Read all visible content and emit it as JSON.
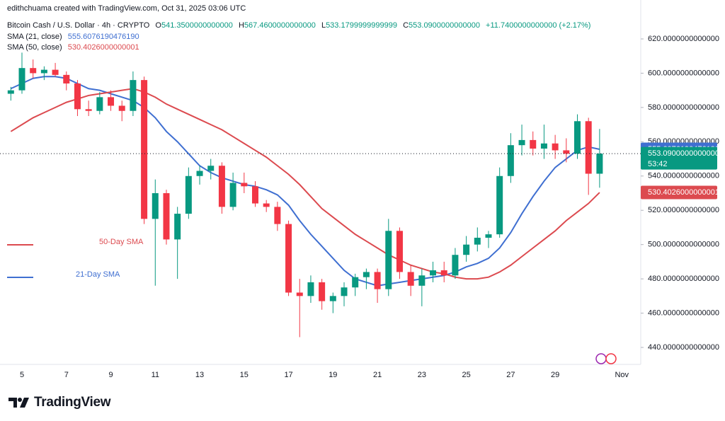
{
  "header": {
    "credit": "edithchuama created with TradingView.com, Oct 31, 2025 03:06 UTC",
    "symbol": "Bitcoin Cash / U.S. Dollar · 4h · CRYPTO",
    "ohlc": [
      {
        "key": "O",
        "value": "541.3500000000000"
      },
      {
        "key": "H",
        "value": "567.4600000000000"
      },
      {
        "key": "L",
        "value": "533.1799999999999"
      },
      {
        "key": "C",
        "value": "553.0900000000000"
      }
    ],
    "change": "+11.7400000000000 (+2.17%)"
  },
  "footer": {
    "brand": "TradingView"
  },
  "chart_data": {
    "type": "candlestick",
    "categories": [
      null,
      "5",
      null,
      null,
      null,
      "7",
      null,
      null,
      null,
      "9",
      null,
      null,
      null,
      "11",
      null,
      null,
      null,
      "13",
      null,
      null,
      null,
      "15",
      null,
      null,
      null,
      "17",
      null,
      null,
      null,
      "19",
      null,
      null,
      null,
      "21",
      null,
      null,
      null,
      "23",
      null,
      null,
      null,
      "25",
      null,
      null,
      null,
      "27",
      null,
      null,
      null,
      "29",
      null,
      null,
      null,
      null,
      null,
      "Nov"
    ],
    "open": [
      588,
      590,
      603,
      600,
      602,
      599,
      594,
      579,
      578,
      586,
      581,
      578,
      596,
      515,
      530,
      503,
      518,
      540,
      543,
      546,
      522,
      536,
      534,
      524,
      522,
      512,
      472,
      470,
      478,
      467,
      470,
      475,
      481,
      484,
      474,
      508,
      484,
      476,
      482,
      485,
      482,
      494,
      500,
      504,
      506,
      540,
      558,
      561,
      556,
      559,
      555,
      553,
      572,
      541.35,
      null,
      null
    ],
    "high": [
      592,
      612,
      608,
      604,
      606,
      601,
      596,
      584,
      589,
      590,
      584,
      601,
      598,
      538,
      532,
      522,
      545,
      546,
      550,
      548,
      542,
      542,
      537,
      526,
      525,
      514,
      480,
      482,
      480,
      472,
      478,
      483,
      486,
      486,
      515,
      510,
      488,
      486,
      490,
      490,
      498,
      505,
      510,
      508,
      545,
      565,
      570,
      566,
      570,
      564,
      562,
      576,
      574,
      567.46,
      null,
      null
    ],
    "low": [
      584,
      588,
      597,
      596,
      598,
      590,
      575,
      575,
      576,
      578,
      572,
      575,
      512,
      476,
      500,
      480,
      515,
      535,
      538,
      518,
      520,
      530,
      522,
      519,
      508,
      470,
      446,
      466,
      462,
      460,
      464,
      470,
      474,
      466,
      470,
      480,
      470,
      464,
      478,
      478,
      480,
      490,
      496,
      498,
      504,
      536,
      552,
      552,
      550,
      550,
      548,
      550,
      529,
      533.18,
      null,
      null
    ],
    "close": [
      590,
      603,
      600,
      602,
      599,
      594,
      579,
      578,
      586,
      581,
      578,
      596,
      515,
      530,
      503,
      518,
      540,
      543,
      546,
      522,
      536,
      534,
      524,
      522,
      512,
      472,
      470,
      478,
      467,
      470,
      475,
      481,
      484,
      474,
      508,
      484,
      476,
      482,
      485,
      482,
      494,
      500,
      504,
      506,
      540,
      558,
      561,
      556,
      559,
      555,
      553,
      572,
      541.35,
      553.09,
      null,
      null
    ],
    "up_color": "#089981",
    "down_color": "#f23645",
    "close_label": "553.0900000000000",
    "countdown": "53:42",
    "series": [
      {
        "name": "SMA (21, close)",
        "color": "#3f6fd1",
        "annotation": "21-Day SMA",
        "last_label": "555.6076190476190",
        "values": [
          591,
          594,
          597,
          598,
          598,
          597,
          594,
          591,
          590,
          588,
          586,
          584,
          580,
          574,
          566,
          560,
          553,
          546,
          542,
          539,
          537,
          535,
          534,
          532,
          529,
          523,
          514,
          506,
          499,
          492,
          485,
          480,
          478,
          476,
          477,
          478,
          479,
          480,
          481,
          482,
          484,
          487,
          489,
          492,
          498,
          507,
          518,
          528,
          537,
          545,
          550,
          555,
          557,
          555.607619047619,
          null,
          null
        ]
      },
      {
        "name": "SMA (50, close)",
        "color": "#dc4a4f",
        "annotation": "50-Day SMA",
        "last_label": "530.4026000000001",
        "values": [
          566,
          570,
          574,
          577,
          580,
          583,
          585,
          587,
          588,
          589,
          590,
          591,
          589,
          586,
          582,
          579,
          576,
          573,
          570,
          567,
          563,
          559,
          555,
          551,
          546,
          541,
          535,
          528,
          521,
          516,
          511,
          506,
          502,
          498,
          494,
          491,
          488,
          486,
          484,
          483,
          481,
          480,
          480,
          481,
          484,
          488,
          493,
          498,
          503,
          508,
          514,
          519,
          524,
          530.4026000000001,
          null,
          null
        ]
      }
    ],
    "ylim": [
      430.1,
      642.7
    ],
    "yticks": [
      {
        "value": 440,
        "label": "440.0000000000000"
      },
      {
        "value": 460,
        "label": "460.0000000000000"
      },
      {
        "value": 480,
        "label": "480.0000000000000"
      },
      {
        "value": 500,
        "label": "500.0000000000000"
      },
      {
        "value": 520,
        "label": "520.0000000000000"
      },
      {
        "value": 540,
        "label": "540.0000000000000"
      },
      {
        "value": 560,
        "label": "560.0000000000000"
      },
      {
        "value": 580,
        "label": "580.0000000000000"
      },
      {
        "value": 600,
        "label": "600.0000000000000"
      },
      {
        "value": 620,
        "label": "620.0000000000000"
      }
    ],
    "grid": false
  }
}
